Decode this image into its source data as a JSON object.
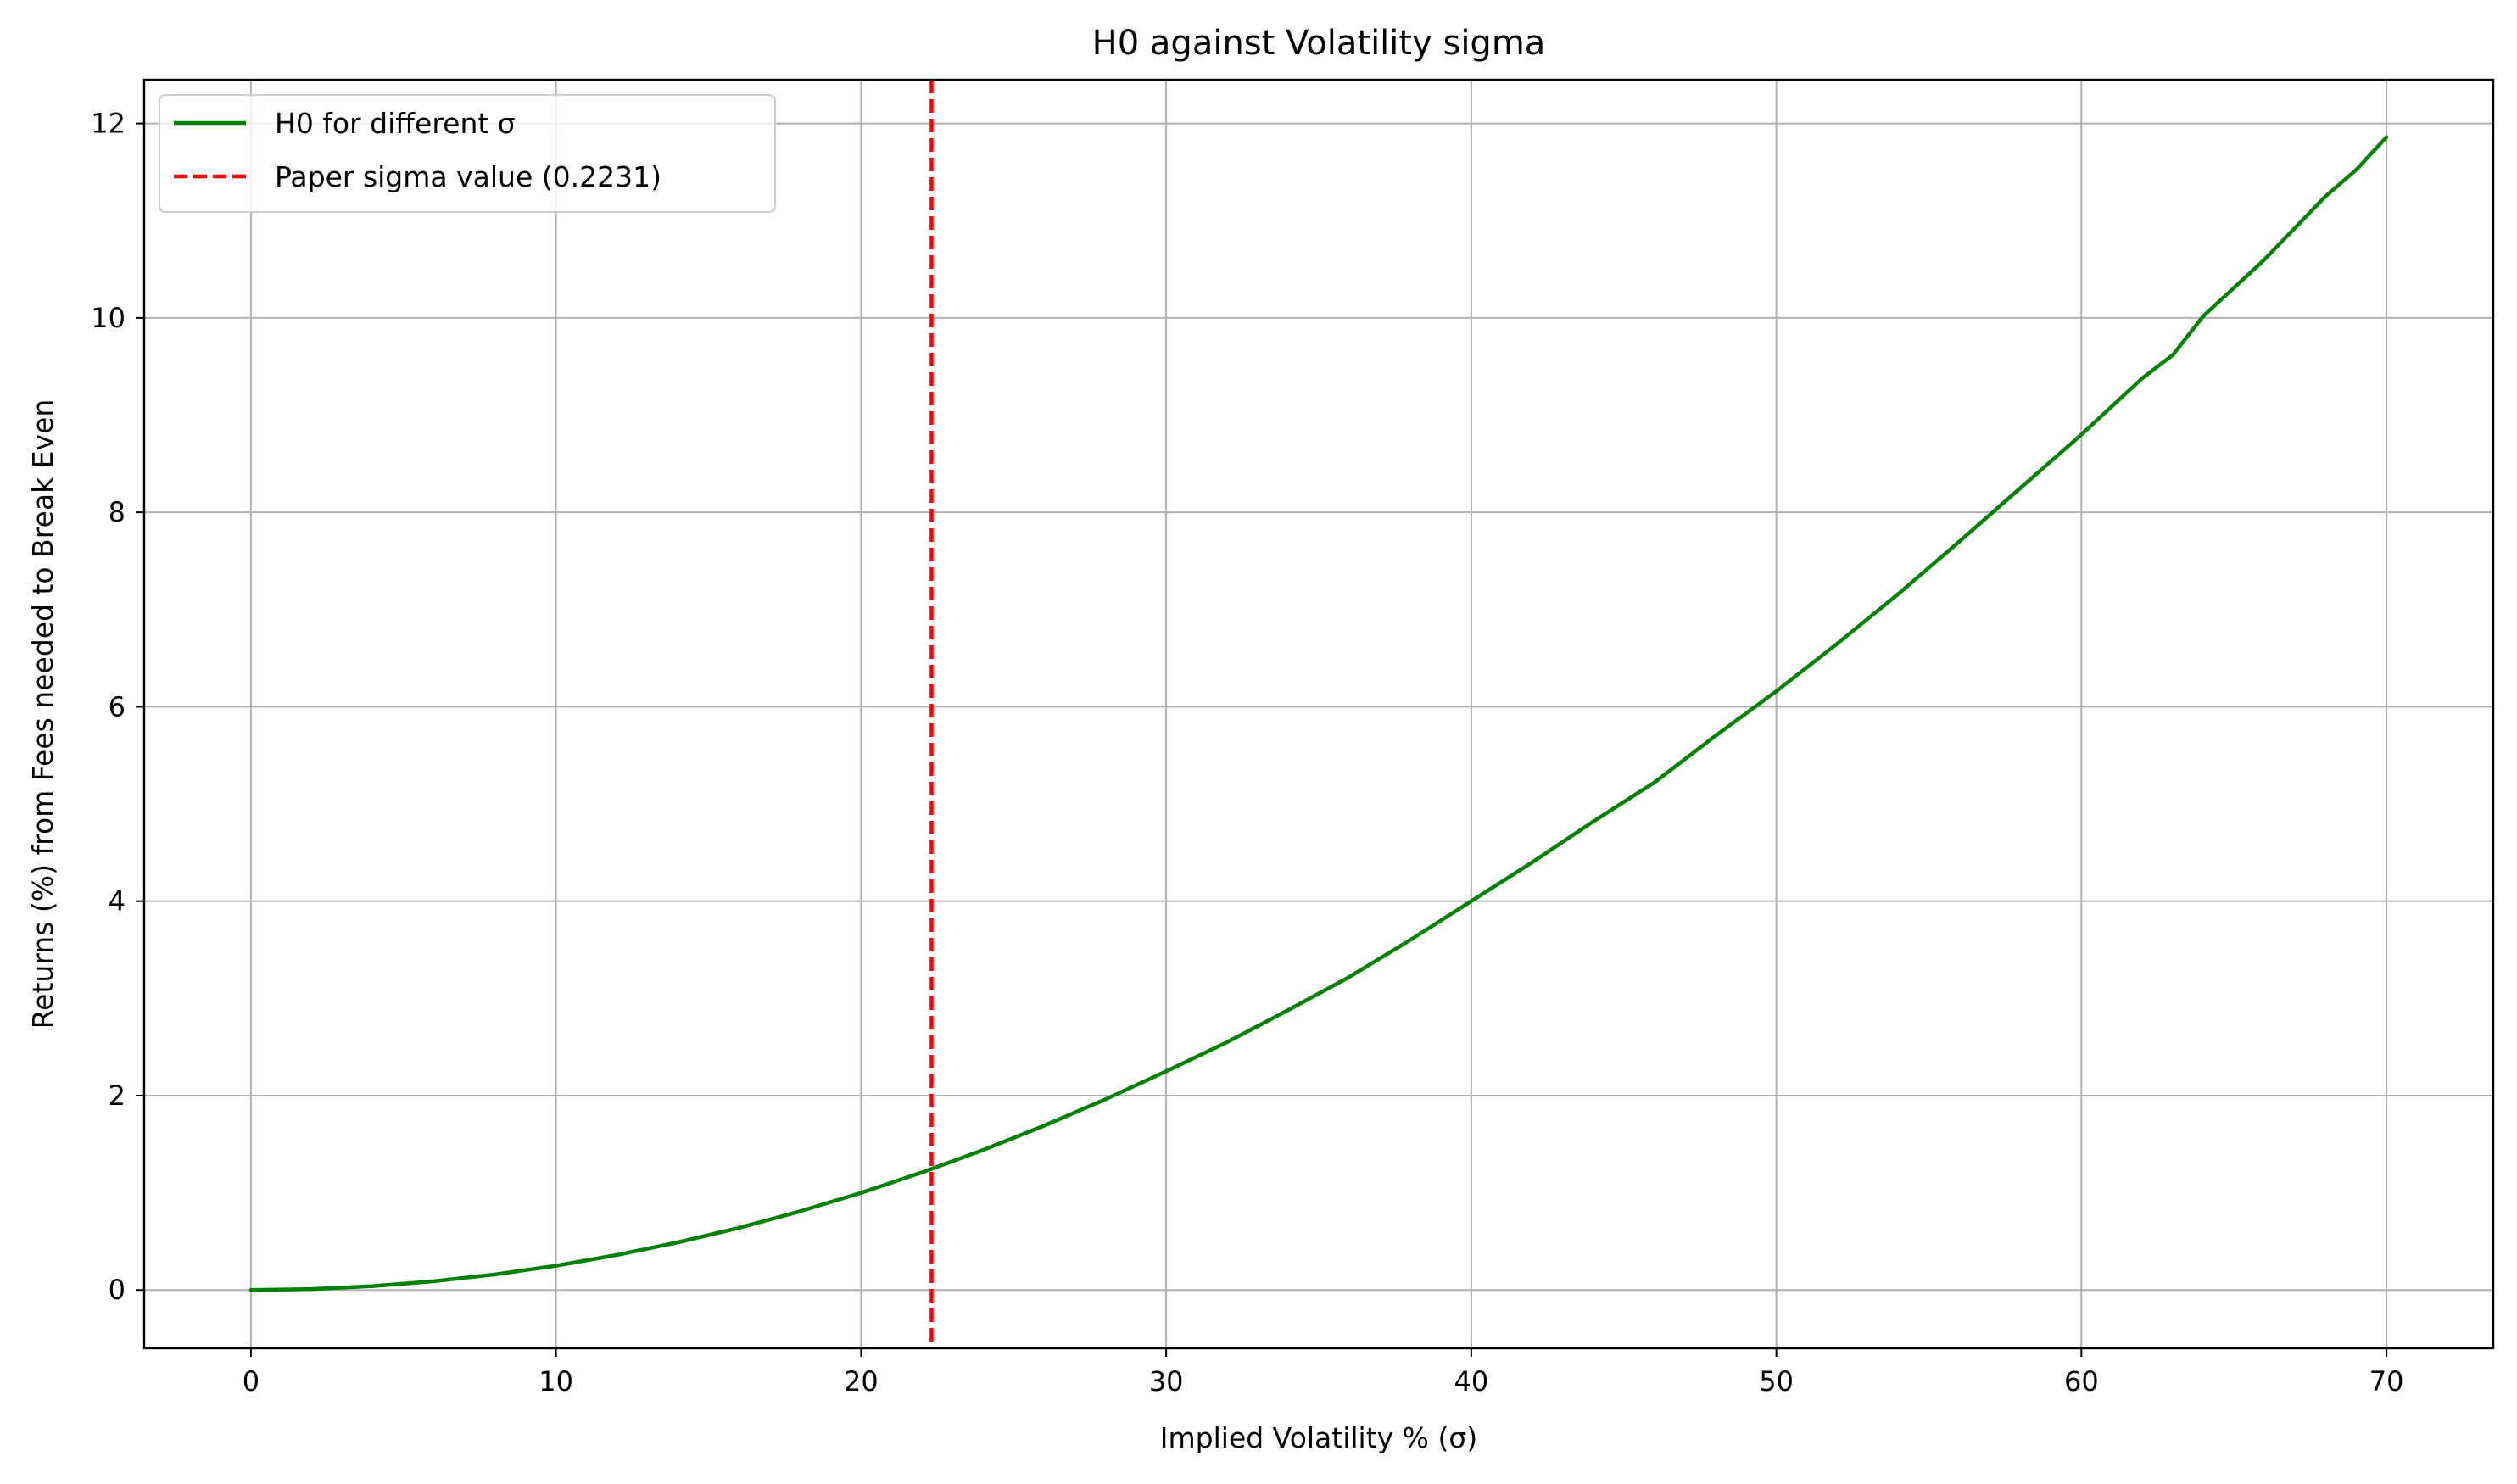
{
  "chart_data": {
    "type": "line",
    "title": "H0 against Volatility sigma",
    "xlabel": "Implied Volatility % (σ)",
    "ylabel": "Returns (%) from Fees needed to Break Even",
    "xlim": [
      -3.5,
      73.5
    ],
    "ylim": [
      -0.6,
      12.45
    ],
    "xticks": [
      0,
      10,
      20,
      30,
      40,
      50,
      60,
      70
    ],
    "yticks": [
      0,
      2,
      4,
      6,
      8,
      10,
      12
    ],
    "grid": true,
    "legend_position": "top-left",
    "series": [
      {
        "name": "H0 for different σ",
        "color": "#008000",
        "style": "solid",
        "x": [
          0,
          2,
          4,
          6,
          8,
          10,
          12,
          14,
          16,
          18,
          20,
          22,
          24,
          26,
          28,
          30,
          32,
          34,
          36,
          38,
          40,
          42,
          44,
          46,
          48,
          50,
          52,
          54,
          56,
          58,
          60,
          62,
          63,
          64,
          66,
          68,
          69,
          70
        ],
        "y": [
          0,
          0.01,
          0.04,
          0.09,
          0.16,
          0.25,
          0.36,
          0.49,
          0.64,
          0.81,
          1.0,
          1.21,
          1.44,
          1.69,
          1.96,
          2.25,
          2.55,
          2.88,
          3.22,
          3.6,
          4.0,
          4.4,
          4.82,
          5.22,
          5.7,
          6.16,
          6.65,
          7.16,
          7.7,
          8.25,
          8.8,
          9.38,
          9.62,
          10.02,
          10.6,
          11.25,
          11.52,
          11.86
        ]
      },
      {
        "name": "Paper sigma value (0.2231)",
        "color": "#ff0000",
        "style": "dashed",
        "type": "vline",
        "x_value": 22.31
      }
    ]
  }
}
